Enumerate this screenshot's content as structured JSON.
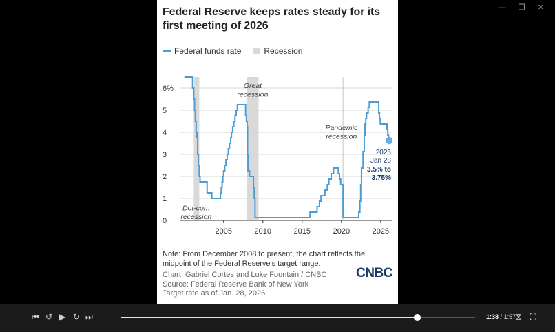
{
  "window": {
    "controls": [
      {
        "name": "minimize-button",
        "glyph": "—"
      },
      {
        "name": "restore-button",
        "glyph": "❐"
      },
      {
        "name": "close-button",
        "glyph": "✕"
      }
    ]
  },
  "card": {
    "title": "Federal Reserve keeps rates steady for its first meeting of 2026",
    "legend": {
      "line_label": "Federal funds rate",
      "recession_label": "Recession"
    },
    "note": "Note: From December 2008 to present, the chart reflects the midpoint of the Federal Reserve's target range.",
    "credit_chart": "Chart: Gabriel Cortes and Luke Fountain / CNBC",
    "credit_source": "Source: Federal Reserve Bank of New York",
    "credit_target": "Target rate as of Jan. 28, 2026",
    "logo": "CNBC"
  },
  "chart_data": {
    "type": "line",
    "title": "Federal Reserve keeps rates steady for its first meeting of 2026",
    "xlim": [
      1999.5,
      2026.5
    ],
    "ylim": [
      0,
      6.5
    ],
    "x_ticks": [
      2005,
      2010,
      2015,
      2020,
      2025
    ],
    "y_ticks": [
      {
        "value": 0,
        "label": "0"
      },
      {
        "value": 1,
        "label": "1"
      },
      {
        "value": 2,
        "label": "2"
      },
      {
        "value": 3,
        "label": "3"
      },
      {
        "value": 4,
        "label": "4"
      },
      {
        "value": 5,
        "label": "5"
      },
      {
        "value": 6,
        "label": "6%"
      }
    ],
    "grid": "horizontal",
    "line_color": "#4b9cd3",
    "recession_color": "#d9d9d9",
    "recessions": [
      {
        "start": 2001.2,
        "end": 2001.9
      },
      {
        "start": 2007.95,
        "end": 2009.45
      }
    ],
    "annotations": [
      {
        "name": "dotcom-recession-label",
        "lines": [
          "Dot-com",
          "recession"
        ],
        "x": 2001.5,
        "y": 0.45
      },
      {
        "name": "great-recession-label",
        "lines": [
          "Great",
          "recession"
        ],
        "x": 2008.7,
        "y": 6.0
      },
      {
        "name": "pandemic-recession-label",
        "lines": [
          "Pandemic",
          "recession"
        ],
        "x": 2020.0,
        "y": 4.1
      }
    ],
    "pandemic_marker_x": 2020.2,
    "endpoint": {
      "x": 2026.08,
      "y": 3.625,
      "label_year": "2026",
      "label_date": "Jan 28",
      "label_range_1": "3.5% to",
      "label_range_2": "3.75%"
    },
    "series": [
      {
        "values": [
          [
            2000.0,
            6.5
          ],
          [
            2000.5,
            6.5
          ],
          [
            2001.0,
            6.5
          ],
          [
            2001.05,
            6.0
          ],
          [
            2001.2,
            5.5
          ],
          [
            2001.3,
            5.0
          ],
          [
            2001.4,
            4.5
          ],
          [
            2001.5,
            4.0
          ],
          [
            2001.6,
            3.75
          ],
          [
            2001.7,
            3.0
          ],
          [
            2001.8,
            2.5
          ],
          [
            2001.9,
            2.0
          ],
          [
            2002.0,
            1.75
          ],
          [
            2002.9,
            1.25
          ],
          [
            2003.5,
            1.0
          ],
          [
            2004.5,
            1.0
          ],
          [
            2004.6,
            1.25
          ],
          [
            2004.7,
            1.5
          ],
          [
            2004.8,
            1.75
          ],
          [
            2004.9,
            2.0
          ],
          [
            2005.0,
            2.25
          ],
          [
            2005.15,
            2.5
          ],
          [
            2005.3,
            2.75
          ],
          [
            2005.45,
            3.0
          ],
          [
            2005.6,
            3.25
          ],
          [
            2005.75,
            3.5
          ],
          [
            2005.9,
            3.75
          ],
          [
            2006.0,
            4.0
          ],
          [
            2006.15,
            4.25
          ],
          [
            2006.3,
            4.5
          ],
          [
            2006.45,
            4.75
          ],
          [
            2006.6,
            5.0
          ],
          [
            2006.75,
            5.25
          ],
          [
            2007.7,
            5.25
          ],
          [
            2007.8,
            4.75
          ],
          [
            2007.9,
            4.5
          ],
          [
            2008.0,
            4.25
          ],
          [
            2008.05,
            3.0
          ],
          [
            2008.1,
            2.25
          ],
          [
            2008.3,
            2.0
          ],
          [
            2008.8,
            1.5
          ],
          [
            2008.9,
            1.0
          ],
          [
            2009.0,
            0.125
          ],
          [
            2015.9,
            0.125
          ],
          [
            2016.0,
            0.375
          ],
          [
            2016.9,
            0.625
          ],
          [
            2017.2,
            0.875
          ],
          [
            2017.4,
            1.125
          ],
          [
            2017.9,
            1.375
          ],
          [
            2018.2,
            1.625
          ],
          [
            2018.4,
            1.875
          ],
          [
            2018.7,
            2.125
          ],
          [
            2019.0,
            2.375
          ],
          [
            2019.5,
            2.375
          ],
          [
            2019.6,
            2.125
          ],
          [
            2019.75,
            1.875
          ],
          [
            2019.9,
            1.625
          ],
          [
            2020.2,
            0.125
          ],
          [
            2022.1,
            0.125
          ],
          [
            2022.2,
            0.375
          ],
          [
            2022.35,
            0.875
          ],
          [
            2022.45,
            1.625
          ],
          [
            2022.55,
            2.375
          ],
          [
            2022.75,
            3.125
          ],
          [
            2022.9,
            3.875
          ],
          [
            2023.0,
            4.375
          ],
          [
            2023.1,
            4.625
          ],
          [
            2023.2,
            4.875
          ],
          [
            2023.4,
            5.125
          ],
          [
            2023.55,
            5.375
          ],
          [
            2024.7,
            5.375
          ],
          [
            2024.75,
            4.875
          ],
          [
            2024.85,
            4.625
          ],
          [
            2024.95,
            4.375
          ],
          [
            2025.7,
            4.375
          ],
          [
            2025.8,
            4.125
          ],
          [
            2025.9,
            3.875
          ],
          [
            2026.0,
            3.625
          ],
          [
            2026.08,
            3.625
          ]
        ]
      }
    ]
  },
  "player": {
    "buttons": [
      {
        "name": "skip-start-button",
        "glyph": "⏮"
      },
      {
        "name": "rewind-10-button",
        "glyph": "↺"
      },
      {
        "name": "play-button",
        "glyph": "▶"
      },
      {
        "name": "forward-10-button",
        "glyph": "↻"
      },
      {
        "name": "skip-end-button",
        "glyph": "⏭"
      }
    ],
    "progress": 0.837,
    "current_time": "1:38",
    "separator": "/",
    "duration": "1:57",
    "right_buttons": [
      {
        "name": "captions-icon",
        "glyph": "⊠"
      },
      {
        "name": "fullscreen-icon",
        "glyph": "⛶"
      }
    ]
  }
}
